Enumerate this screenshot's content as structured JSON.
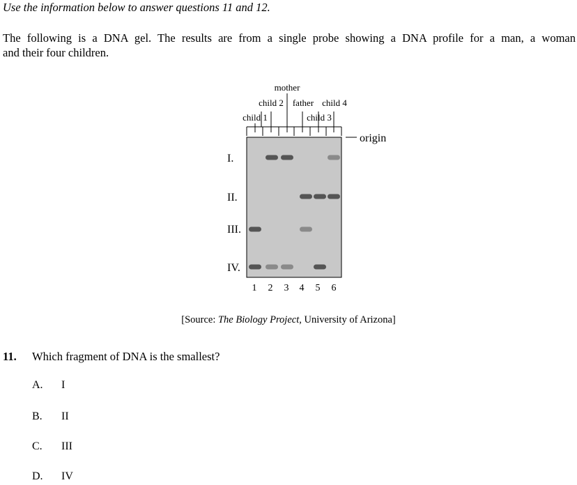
{
  "intro": "Use the information below to answer questions 11 and 12.",
  "paragraph": {
    "line1": "The following is a DNA gel.  The results are from a single probe showing a DNA profile for a man, a woman",
    "line2": "and their four children."
  },
  "gel": {
    "lane_labels": {
      "mother": "mother",
      "child2": "child 2",
      "father": "father",
      "child4": "child 4",
      "child1": "child 1",
      "child3": "child 3"
    },
    "origin_label": "origin",
    "row_labels": [
      "I.",
      "II.",
      "III.",
      "IV."
    ],
    "lane_numbers": [
      "1",
      "2",
      "3",
      "4",
      "5",
      "6"
    ],
    "gel_color": "#c8c8c8",
    "band_dark": "#555555",
    "band_light": "#8a8a8a",
    "bands": [
      {
        "row": "I",
        "lane": 2,
        "shade": "dark"
      },
      {
        "row": "I",
        "lane": 3,
        "shade": "dark"
      },
      {
        "row": "I",
        "lane": 6,
        "shade": "light"
      },
      {
        "row": "II",
        "lane": 4,
        "shade": "dark"
      },
      {
        "row": "II",
        "lane": 5,
        "shade": "dark"
      },
      {
        "row": "II",
        "lane": 6,
        "shade": "dark"
      },
      {
        "row": "III",
        "lane": 1,
        "shade": "dark"
      },
      {
        "row": "III",
        "lane": 4,
        "shade": "light"
      },
      {
        "row": "IV",
        "lane": 1,
        "shade": "dark"
      },
      {
        "row": "IV",
        "lane": 2,
        "shade": "light"
      },
      {
        "row": "IV",
        "lane": 3,
        "shade": "light"
      },
      {
        "row": "IV",
        "lane": 5,
        "shade": "dark"
      }
    ]
  },
  "source": {
    "prefix": "[Source: ",
    "title": "The Biology Project",
    "suffix": ", University of Arizona]"
  },
  "question": {
    "number": "11.",
    "text": "Which fragment of DNA is the smallest?",
    "options": [
      {
        "letter": "A.",
        "text": "I"
      },
      {
        "letter": "B.",
        "text": "II"
      },
      {
        "letter": "C.",
        "text": "III"
      },
      {
        "letter": "D.",
        "text": "IV"
      }
    ]
  }
}
